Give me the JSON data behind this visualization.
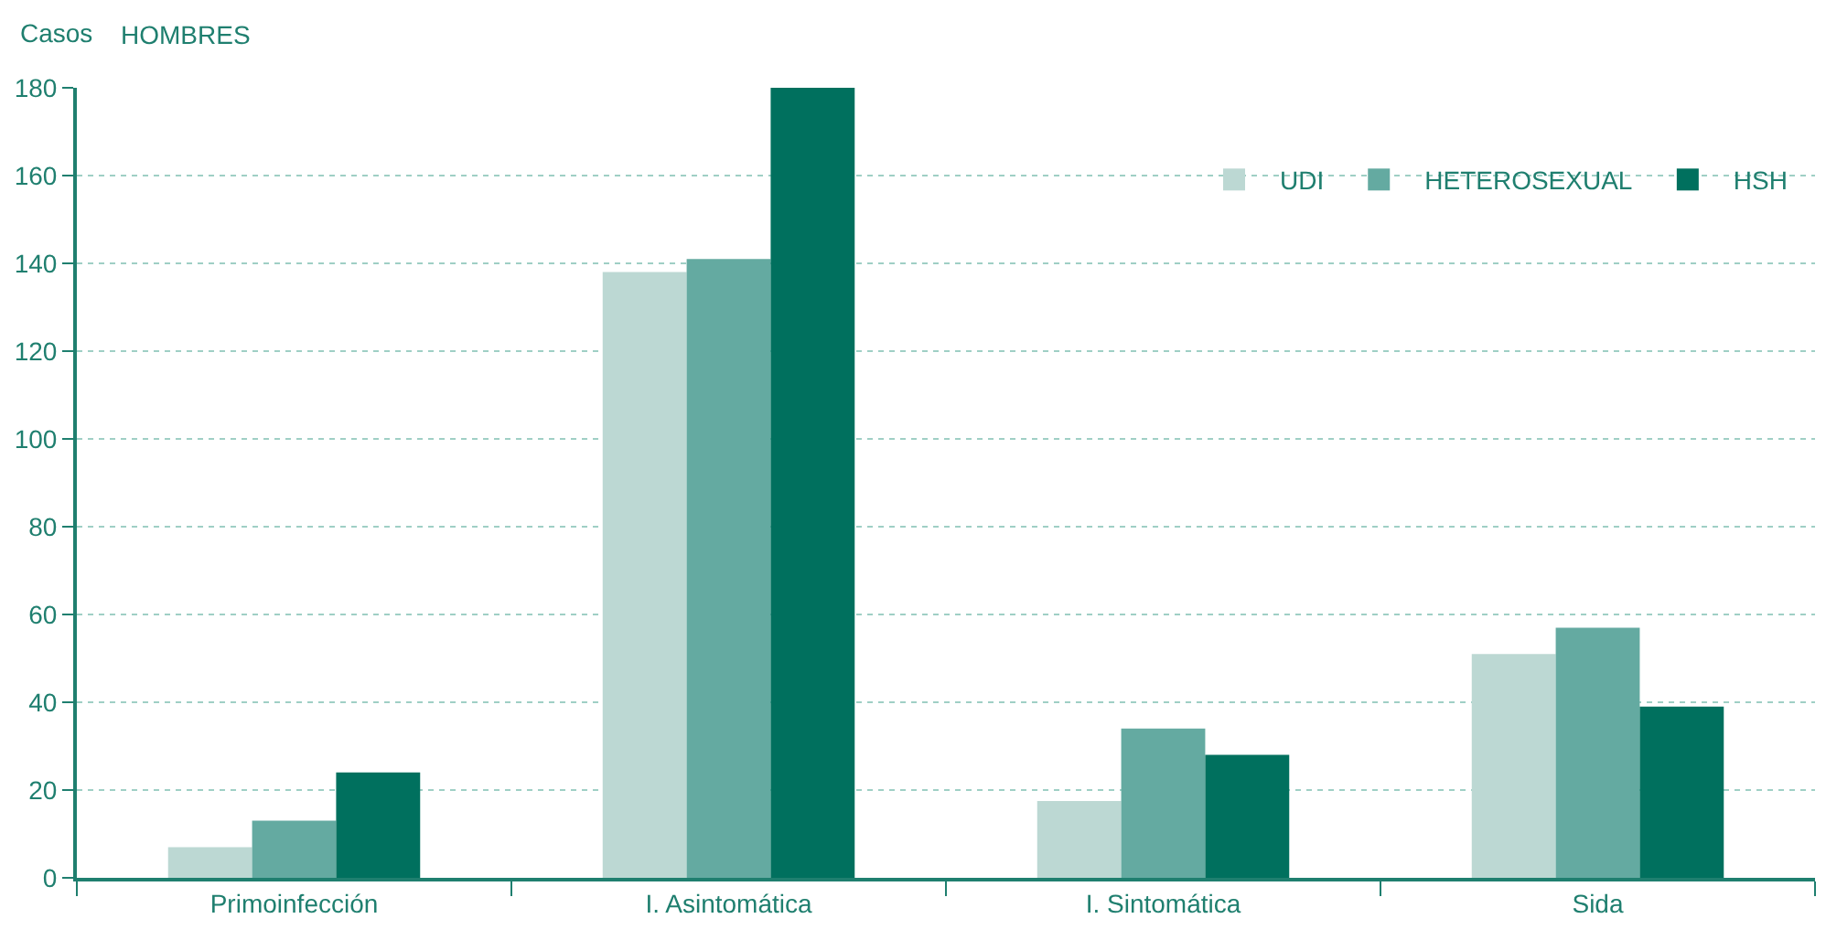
{
  "chart_data": {
    "type": "bar",
    "title": "HOMBRES",
    "ylabel": "Casos",
    "categories": [
      "Primoinfección",
      "I. Asintomática",
      "I. Sintomática",
      "Sida"
    ],
    "series": [
      {
        "name": "UDI",
        "color": "#bcd8d3",
        "values": [
          7,
          138,
          17.5,
          51
        ]
      },
      {
        "name": "HETEROSEXUAL",
        "color": "#64aaa1",
        "values": [
          13,
          141,
          34,
          57
        ]
      },
      {
        "name": "HSH",
        "color": "#00705e",
        "values": [
          24,
          180,
          28,
          39
        ]
      }
    ],
    "ylim": [
      0,
      180
    ],
    "yticks": [
      0,
      20,
      40,
      60,
      80,
      100,
      120,
      140,
      160,
      180
    ],
    "grid": "y",
    "legend": "top right"
  }
}
